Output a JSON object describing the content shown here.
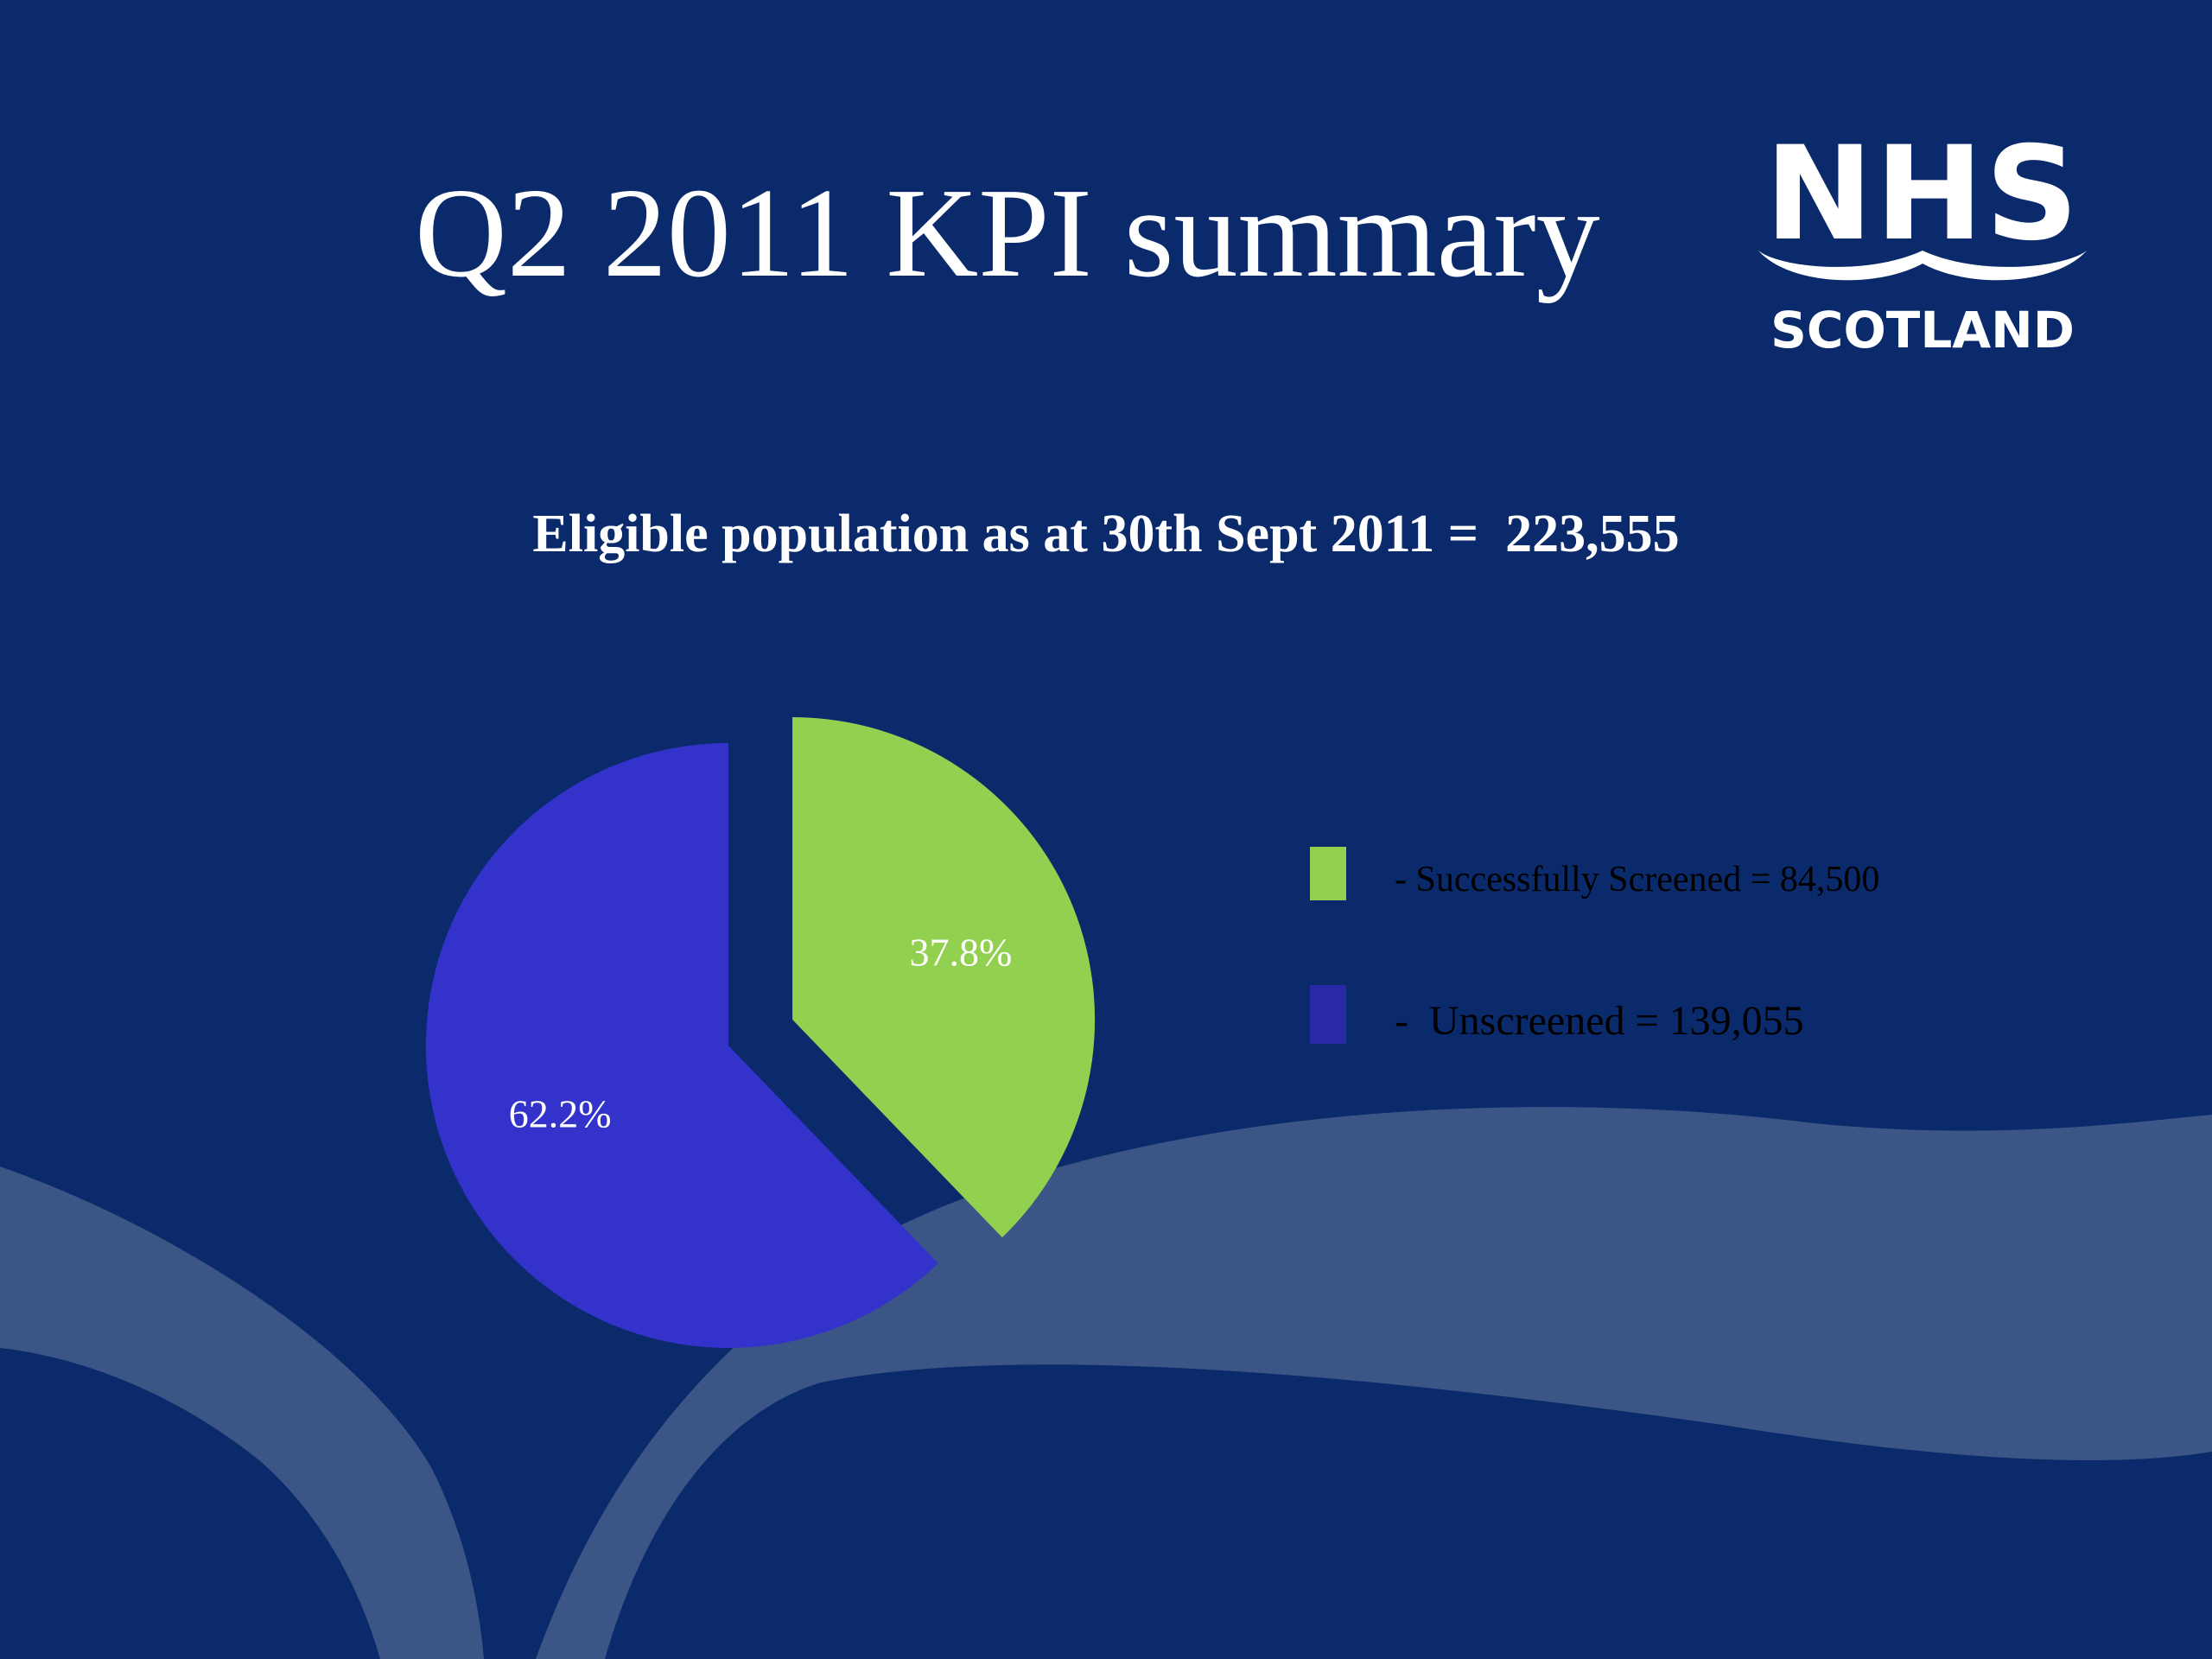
{
  "slide": {
    "title": "Q2 2011 KPI summary",
    "subtitle": "Eligible population as at 30th Sept 2011 =  223,555",
    "background_color": "#0a2a6b",
    "wave_color": "#3b5586"
  },
  "logo": {
    "name": "nhs-scotland-logo",
    "line1": "NHS",
    "line2": "SCOTLAND",
    "color": "#ffffff"
  },
  "chart_data": {
    "type": "pie",
    "exploded": true,
    "slices": [
      {
        "label": "Successfully Screened",
        "value": 84500,
        "percent_label": "37.8%",
        "color": "#92d050"
      },
      {
        "label": "Unscreened",
        "value": 139055,
        "percent_label": "62.2%",
        "color": "#3333cc"
      }
    ],
    "total": 223555,
    "legend": {
      "placement": "right",
      "entries": [
        {
          "text": "- Successfully Screened = 84,500",
          "color": "#92d050"
        },
        {
          "text": "-  Unscreened = 139,055",
          "color": "#2a2aa8"
        }
      ]
    }
  }
}
